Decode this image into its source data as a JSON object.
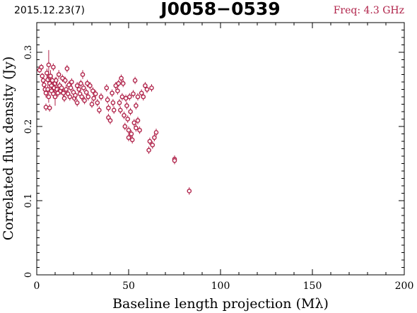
{
  "header": {
    "date": "2015.12.23(7)",
    "source": "J0058−0539",
    "frequency": "Freq: 4.3 GHz"
  },
  "colors": {
    "marker": "#b0234a",
    "axes": "#000000"
  },
  "chart_data": {
    "type": "scatter",
    "xlabel": "Baseline length projection (Mλ)",
    "ylabel": "Correlated flux density (Jy)",
    "xlim": [
      0,
      200
    ],
    "ylim": [
      0,
      0.34
    ],
    "xticks": [
      0,
      50,
      100,
      150,
      200
    ],
    "xtick_labels": [
      "0",
      "50",
      "100",
      "150",
      "200"
    ],
    "yticks": [
      0,
      0.1,
      0.2,
      0.3
    ],
    "ytick_labels": [
      "0",
      "0.1",
      "0.2",
      "0.3"
    ],
    "marker": "open-circle",
    "points": [
      [
        1.5,
        0.276,
        0.004
      ],
      [
        2.5,
        0.28,
        0.004
      ],
      [
        3.0,
        0.268,
        0.004
      ],
      [
        3.5,
        0.262,
        0.004
      ],
      [
        4.0,
        0.256,
        0.005
      ],
      [
        4.5,
        0.25,
        0.005
      ],
      [
        5.0,
        0.245,
        0.006
      ],
      [
        5.0,
        0.226,
        0.005
      ],
      [
        5.5,
        0.272,
        0.006
      ],
      [
        6.0,
        0.263,
        0.006
      ],
      [
        6.0,
        0.25,
        0.006
      ],
      [
        6.5,
        0.283,
        0.02
      ],
      [
        6.5,
        0.24,
        0.008
      ],
      [
        7.0,
        0.258,
        0.006
      ],
      [
        7.0,
        0.225,
        0.005
      ],
      [
        7.5,
        0.268,
        0.008
      ],
      [
        8.0,
        0.255,
        0.006
      ],
      [
        8.0,
        0.248,
        0.006
      ],
      [
        8.5,
        0.262,
        0.006
      ],
      [
        9.0,
        0.28,
        0.005
      ],
      [
        9.0,
        0.244,
        0.006
      ],
      [
        9.5,
        0.252,
        0.006
      ],
      [
        10.0,
        0.258,
        0.008
      ],
      [
        10.0,
        0.24,
        0.012
      ],
      [
        10.5,
        0.262,
        0.005
      ],
      [
        11.0,
        0.25,
        0.006
      ],
      [
        11.5,
        0.245,
        0.005
      ],
      [
        12.0,
        0.27,
        0.006
      ],
      [
        12.5,
        0.255,
        0.005
      ],
      [
        13.0,
        0.248,
        0.005
      ],
      [
        13.5,
        0.252,
        0.005
      ],
      [
        14.0,
        0.265,
        0.005
      ],
      [
        14.5,
        0.245,
        0.005
      ],
      [
        15.0,
        0.238,
        0.005
      ],
      [
        15.5,
        0.262,
        0.005
      ],
      [
        16.0,
        0.25,
        0.006
      ],
      [
        16.5,
        0.278,
        0.005
      ],
      [
        17.0,
        0.244,
        0.005
      ],
      [
        17.5,
        0.256,
        0.005
      ],
      [
        18.0,
        0.24,
        0.005
      ],
      [
        18.5,
        0.252,
        0.005
      ],
      [
        19.0,
        0.26,
        0.005
      ],
      [
        20.0,
        0.246,
        0.005
      ],
      [
        20.5,
        0.238,
        0.005
      ],
      [
        21.0,
        0.242,
        0.005
      ],
      [
        22.0,
        0.255,
        0.005
      ],
      [
        22.0,
        0.232,
        0.005
      ],
      [
        23.0,
        0.25,
        0.005
      ],
      [
        23.5,
        0.244,
        0.005
      ],
      [
        24.0,
        0.258,
        0.005
      ],
      [
        24.5,
        0.24,
        0.005
      ],
      [
        25.0,
        0.27,
        0.006
      ],
      [
        25.5,
        0.252,
        0.005
      ],
      [
        26.0,
        0.235,
        0.005
      ],
      [
        27.0,
        0.246,
        0.005
      ],
      [
        27.5,
        0.258,
        0.005
      ],
      [
        28.0,
        0.24,
        0.005
      ],
      [
        29.0,
        0.255,
        0.005
      ],
      [
        30.0,
        0.23,
        0.005
      ],
      [
        30.5,
        0.248,
        0.005
      ],
      [
        31.0,
        0.238,
        0.005
      ],
      [
        32.0,
        0.244,
        0.005
      ],
      [
        33.0,
        0.232,
        0.005
      ],
      [
        34.0,
        0.222,
        0.005
      ],
      [
        35.0,
        0.24,
        0.005
      ],
      [
        38.0,
        0.252,
        0.005
      ],
      [
        38.5,
        0.236,
        0.005
      ],
      [
        39.0,
        0.225,
        0.005
      ],
      [
        39.0,
        0.212,
        0.005
      ],
      [
        40.0,
        0.208,
        0.005
      ],
      [
        41.0,
        0.245,
        0.005
      ],
      [
        41.5,
        0.232,
        0.005
      ],
      [
        42.0,
        0.222,
        0.005
      ],
      [
        43.0,
        0.255,
        0.005
      ],
      [
        44.0,
        0.248,
        0.005
      ],
      [
        44.5,
        0.258,
        0.005
      ],
      [
        45.0,
        0.232,
        0.005
      ],
      [
        45.5,
        0.222,
        0.005
      ],
      [
        46.0,
        0.265,
        0.005
      ],
      [
        46.5,
        0.24,
        0.005
      ],
      [
        47.0,
        0.258,
        0.005
      ],
      [
        47.5,
        0.215,
        0.005
      ],
      [
        48.0,
        0.2,
        0.005
      ],
      [
        48.5,
        0.238,
        0.005
      ],
      [
        49.0,
        0.228,
        0.005
      ],
      [
        49.5,
        0.21,
        0.005
      ],
      [
        50.0,
        0.195,
        0.005
      ],
      [
        50.0,
        0.185,
        0.005
      ],
      [
        50.5,
        0.24,
        0.005
      ],
      [
        51.0,
        0.22,
        0.005
      ],
      [
        51.5,
        0.19,
        0.005
      ],
      [
        52.0,
        0.182,
        0.005
      ],
      [
        52.5,
        0.244,
        0.005
      ],
      [
        53.0,
        0.205,
        0.005
      ],
      [
        53.5,
        0.262,
        0.005
      ],
      [
        54.0,
        0.228,
        0.005
      ],
      [
        54.0,
        0.198,
        0.005
      ],
      [
        55.0,
        0.24,
        0.005
      ],
      [
        55.0,
        0.208,
        0.005
      ],
      [
        56.0,
        0.195,
        0.005
      ],
      [
        57.0,
        0.245,
        0.005
      ],
      [
        58.0,
        0.24,
        0.005
      ],
      [
        59.0,
        0.255,
        0.005
      ],
      [
        60.0,
        0.25,
        0.005
      ],
      [
        61.0,
        0.168,
        0.005
      ],
      [
        61.5,
        0.18,
        0.005
      ],
      [
        62.5,
        0.252,
        0.005
      ],
      [
        63.0,
        0.175,
        0.005
      ],
      [
        64.0,
        0.185,
        0.005
      ],
      [
        65.0,
        0.192,
        0.005
      ],
      [
        75.0,
        0.156,
        0.005
      ],
      [
        75.0,
        0.154,
        0.005
      ],
      [
        83.0,
        0.113,
        0.005
      ]
    ]
  }
}
